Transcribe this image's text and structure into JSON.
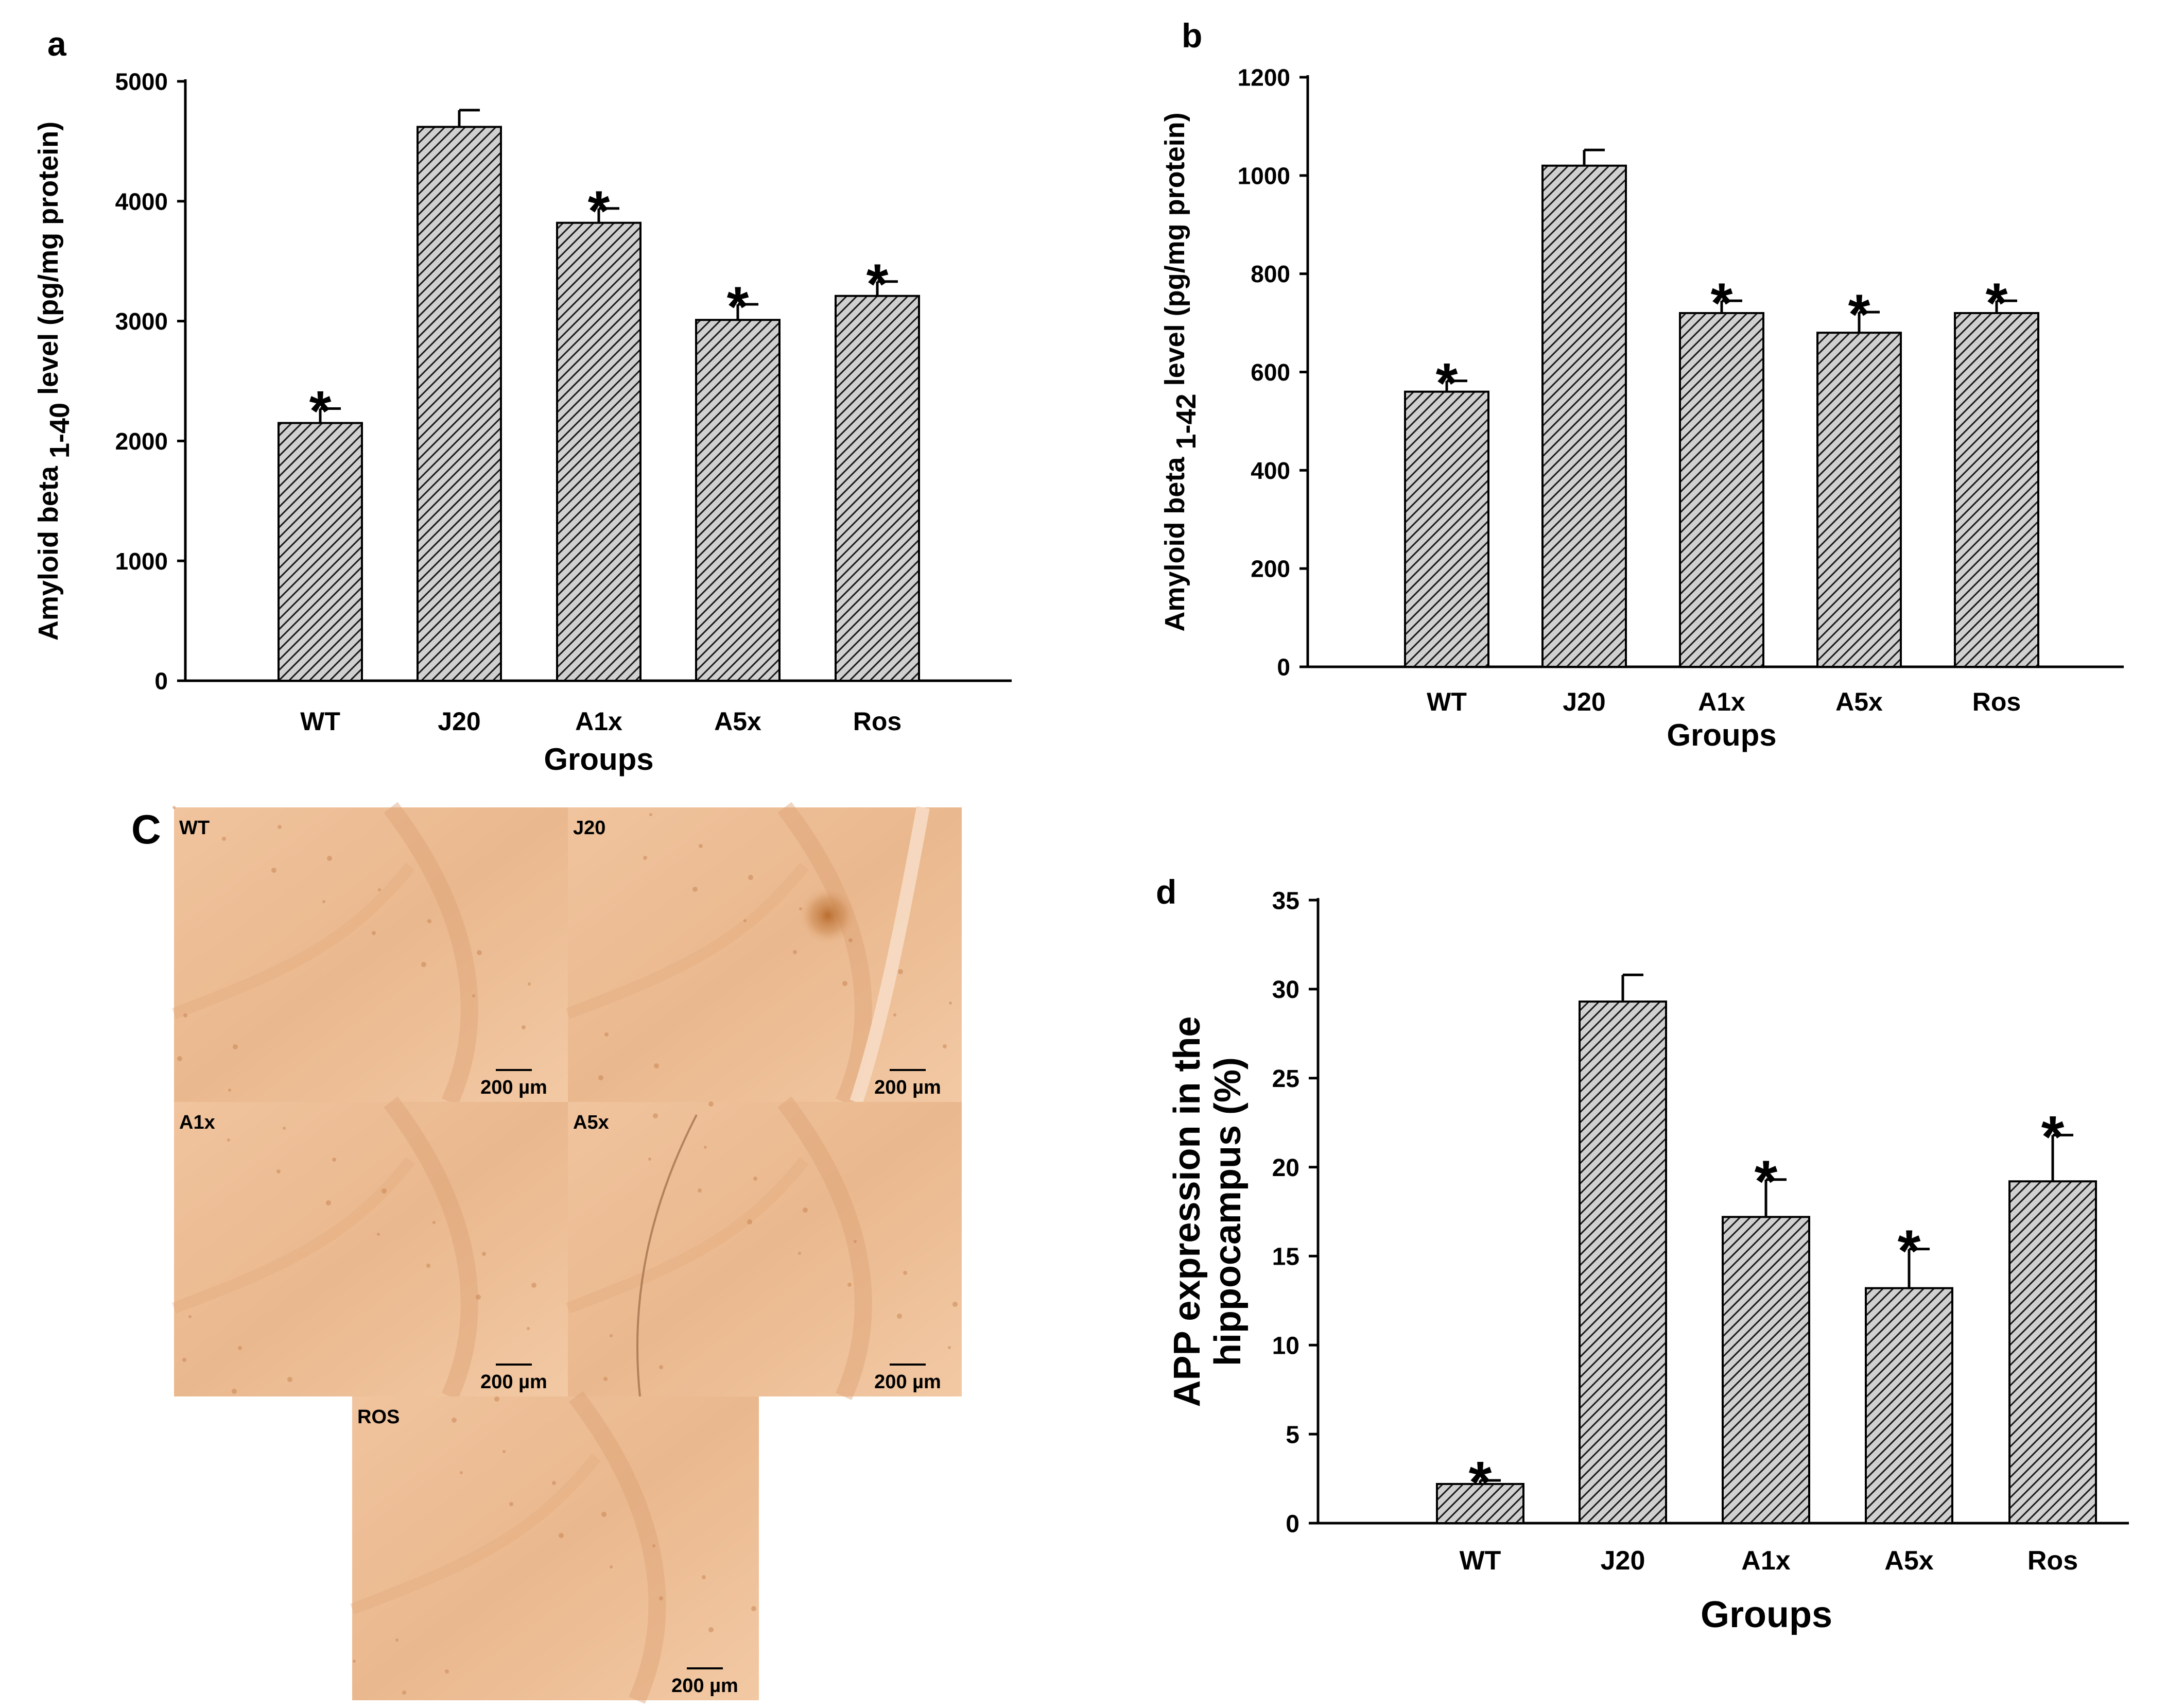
{
  "chart_data": [
    {
      "panel": "a",
      "type": "bar",
      "panel_label": "a",
      "categories": [
        "WT",
        "J20",
        "A1x",
        "A5x",
        "Ros"
      ],
      "values": [
        2150,
        4620,
        3820,
        3010,
        3210
      ],
      "errors": [
        120,
        140,
        120,
        130,
        120
      ],
      "significance": [
        "*",
        "",
        "*",
        "*",
        "*"
      ],
      "xlabel": "Groups",
      "ylabel": "Amyloid beta 1-40 level (pg/mg protein)",
      "ylabel_parts": [
        "Amyloid beta ",
        "1-40",
        " level (pg/mg protein)"
      ],
      "ylim": [
        0,
        5000
      ],
      "yticks": [
        0,
        1000,
        2000,
        3000,
        4000,
        5000
      ],
      "grid": false
    },
    {
      "panel": "b",
      "type": "bar",
      "panel_label": "b",
      "categories": [
        "WT",
        "J20",
        "A1x",
        "A5x",
        "Ros"
      ],
      "values": [
        560,
        1020,
        720,
        680,
        720
      ],
      "errors": [
        22,
        32,
        25,
        42,
        25
      ],
      "significance": [
        "*",
        "",
        "*",
        "*",
        "*"
      ],
      "xlabel": "Groups",
      "ylabel": "Amyloid beta 1-42 level (pg/mg protein)",
      "ylabel_parts": [
        "Amyloid beta ",
        "1-42",
        " level (pg/mg protein)"
      ],
      "ylim": [
        0,
        1200
      ],
      "yticks": [
        0,
        200,
        400,
        600,
        800,
        1000,
        1200
      ],
      "grid": false
    },
    {
      "panel": "d",
      "type": "bar",
      "panel_label": "d",
      "categories": [
        "WT",
        "J20",
        "A1x",
        "A5x",
        "Ros"
      ],
      "values": [
        2.2,
        29.3,
        17.2,
        13.2,
        19.2
      ],
      "errors": [
        0.2,
        1.5,
        2.1,
        2.2,
        2.6
      ],
      "significance": [
        "*",
        "",
        "*",
        "*",
        "*"
      ],
      "xlabel": "Groups",
      "ylabel": "APP expression in the hippocampus (%)",
      "ylabel_lines": [
        "APP expression in the",
        "hippocampus (%)"
      ],
      "ylim": [
        0,
        35
      ],
      "yticks": [
        0,
        5,
        10,
        15,
        20,
        25,
        30,
        35
      ],
      "grid": false
    }
  ],
  "micrographs": {
    "panel_label": "C",
    "images": [
      {
        "label": "WT",
        "scale_bar": "200 µm"
      },
      {
        "label": "J20",
        "scale_bar": "200 µm"
      },
      {
        "label": "A1x",
        "scale_bar": "200 µm"
      },
      {
        "label": "A5x",
        "scale_bar": "200 µm"
      },
      {
        "label": "ROS",
        "scale_bar": "200 µm"
      }
    ]
  },
  "colors": {
    "bar_fill": "#c8c8c8",
    "hatch": "#1a1a1a",
    "axis": "#000000",
    "tissue_light": "#efc29a",
    "tissue_mid": "#e4ad80",
    "tissue_dark": "#c9864d"
  }
}
